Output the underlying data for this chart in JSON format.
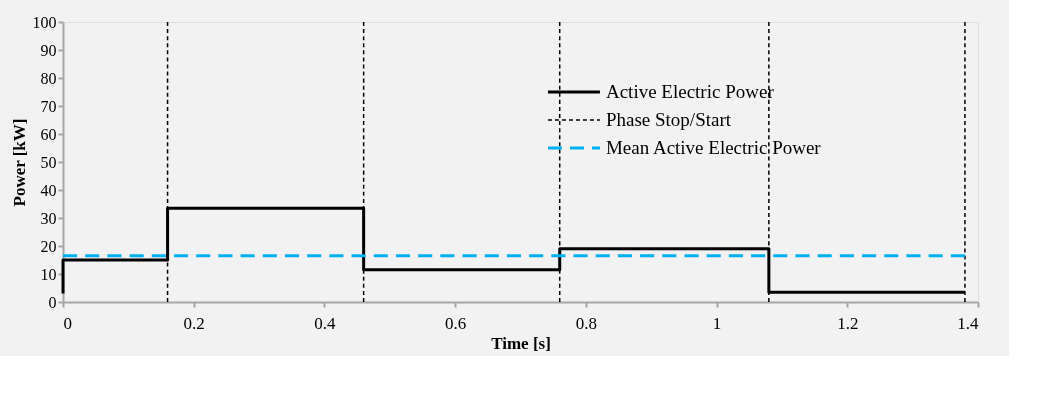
{
  "chart_data": {
    "type": "line",
    "xlabel": "Time [s]",
    "ylabel": "Power [kW]",
    "xlim": [
      0,
      1.4
    ],
    "xticks": [
      0,
      0.2,
      0.4,
      0.6,
      0.8,
      1,
      1.2,
      1.4
    ],
    "ylim": [
      0,
      100
    ],
    "yticks": [
      0,
      10,
      20,
      30,
      40,
      50,
      60,
      70,
      80,
      90,
      100
    ],
    "grid": false,
    "legend": "top right",
    "marker": "none",
    "series": [
      {
        "name": "Active Electric Power",
        "color": "#000000",
        "line_style": "solid",
        "x": [
          0,
          0,
          0.16,
          0.16,
          0.46,
          0.46,
          0.76,
          0.76,
          1.08,
          1.08,
          1.38
        ],
        "values": [
          3,
          15,
          15,
          33.5,
          33.5,
          11.5,
          11.5,
          19,
          19,
          3.5,
          3.5
        ]
      },
      {
        "name": "Phase Stop/Start",
        "color": "#000000",
        "line_style": "dotted",
        "x": [
          0.16,
          0.16,
          null,
          0.46,
          0.46,
          null,
          0.76,
          0.76,
          null,
          1.08,
          1.08,
          null,
          1.38,
          1.38
        ],
        "values": [
          0,
          100,
          null,
          0,
          100,
          null,
          0,
          100,
          null,
          0,
          100,
          null,
          0,
          100
        ]
      },
      {
        "name": "Mean Active Electric Power",
        "color": "#00b0f0",
        "line_style": "dashed",
        "x": [
          0,
          1.38
        ],
        "values": [
          16.5,
          16.5
        ]
      }
    ]
  }
}
